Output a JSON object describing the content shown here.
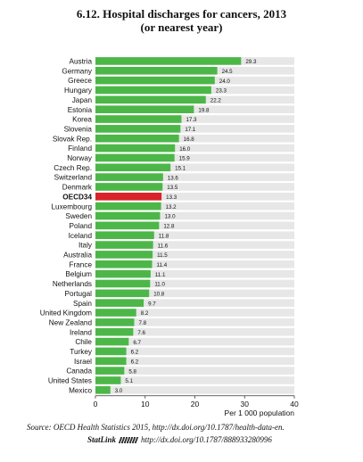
{
  "title_line1": "6.12.  Hospital discharges for cancers, 2013",
  "title_line2": "(or nearest year)",
  "source": {
    "prefix": "Source:",
    "text": " OECD Health Statistics 2015, http://dx.doi.org/10.1787/health-data-en.",
    "statlink_label": "StatLink",
    "statlink_url": "http://dx.doi.org/10.1787/888933280996"
  },
  "chart_data": {
    "type": "bar",
    "orientation": "horizontal",
    "xlabel": "Per 1 000 population",
    "xlim": [
      0,
      40
    ],
    "xticks": [
      0,
      10,
      20,
      30,
      40
    ],
    "grid": false,
    "colors": {
      "bar": "#4cb748",
      "highlight": "#d9232b",
      "track": "#e7e7e7"
    },
    "highlight": "OECD34",
    "categories": [
      "Austria",
      "Germany",
      "Greece",
      "Hungary",
      "Japan",
      "Estonia",
      "Korea",
      "Slovenia",
      "Slovak Rep.",
      "Finland",
      "Norway",
      "Czech Rep.",
      "Switzerland",
      "Denmark",
      "OECD34",
      "Luxembourg",
      "Sweden",
      "Poland",
      "Iceland",
      "Italy",
      "Australia",
      "France",
      "Belgium",
      "Netherlands",
      "Portugal",
      "Spain",
      "United Kingdom",
      "New Zealand",
      "Ireland",
      "Chile",
      "Turkey",
      "Israel",
      "Canada",
      "United States",
      "Mexico"
    ],
    "values": [
      29.3,
      24.5,
      24.0,
      23.3,
      22.2,
      19.8,
      17.3,
      17.1,
      16.8,
      16.0,
      15.9,
      15.1,
      13.6,
      13.5,
      13.3,
      13.2,
      13.0,
      12.8,
      11.8,
      11.6,
      11.5,
      11.4,
      11.1,
      11.0,
      10.8,
      9.7,
      8.2,
      7.8,
      7.6,
      6.7,
      6.2,
      6.2,
      5.8,
      5.1,
      3.0
    ],
    "value_labels": [
      "29.3",
      "24.5",
      "24.0",
      "23.3",
      "22.2",
      "19.8",
      "17.3",
      "17.1",
      "16.8",
      "16.0",
      "15.9",
      "15.1",
      "13.6",
      "13.5",
      "13.3",
      "13.2",
      "13.0",
      "12.8",
      "11.8",
      "11.6",
      "11.5",
      "11.4",
      "11.1",
      "11.0",
      "10.8",
      "9.7",
      "8.2",
      "7.8",
      "7.6",
      "6.7",
      "6.2",
      "6.2",
      "5.8",
      "5.1",
      "3.0"
    ]
  }
}
